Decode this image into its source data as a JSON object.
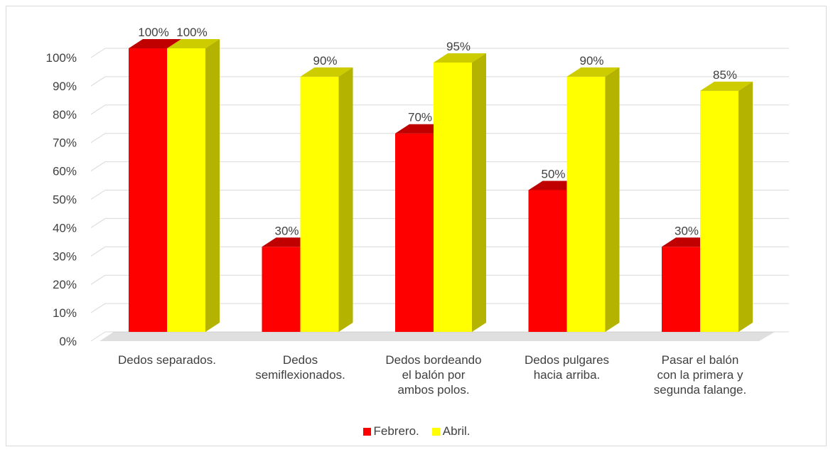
{
  "chart_data": {
    "type": "bar",
    "title": "",
    "xlabel": "",
    "ylabel": "",
    "ylim": [
      0,
      100
    ],
    "y_ticks": [
      "0%",
      "10%",
      "20%",
      "30%",
      "40%",
      "50%",
      "60%",
      "70%",
      "80%",
      "90%",
      "100%"
    ],
    "grid": true,
    "legend_position": "bottom",
    "categories": [
      "Dedos separados.",
      "Dedos\nsemiflexionados.",
      "Dedos bordeando\nel balón por\nambos polos.",
      "Dedos pulgares\nhacia arriba.",
      "Pasar el balón\ncon la primera y\nsegunda falange."
    ],
    "series": [
      {
        "name": "Febrero.",
        "color": "#ff0000",
        "values": [
          100,
          30,
          70,
          50,
          30
        ],
        "labels": [
          "100%",
          "30%",
          "70%",
          "50%",
          "30%"
        ]
      },
      {
        "name": "Abril.",
        "color": "#ffff00",
        "values": [
          100,
          90,
          95,
          90,
          85
        ],
        "labels": [
          "100%",
          "90%",
          "95%",
          "90%",
          "85%"
        ]
      }
    ]
  }
}
